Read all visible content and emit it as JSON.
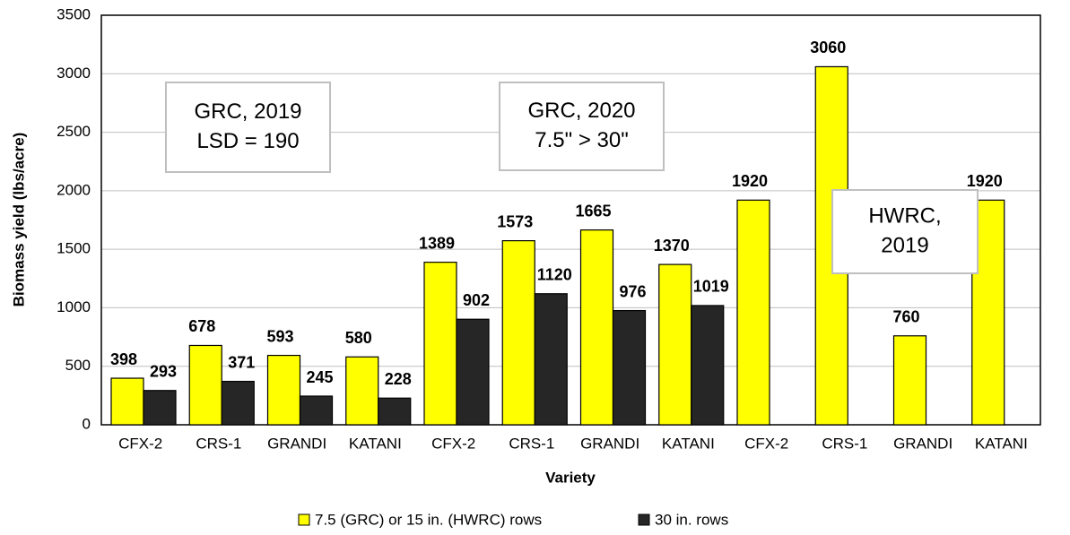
{
  "chart_data": {
    "type": "bar",
    "xlabel": "Variety",
    "ylabel": "Biomass yield (lbs/acre)",
    "categories": [
      "CFX-2",
      "CRS-1",
      "GRANDI",
      "KATANI",
      "CFX-2",
      "CRS-1",
      "GRANDI",
      "KATANI",
      "CFX-2",
      "CRS-1",
      "GRANDI",
      "KATANI"
    ],
    "series": [
      {
        "name": "7.5 (GRC) or 15 in. (HWRC) rows",
        "color": "#ffff00",
        "values": [
          398,
          678,
          593,
          580,
          1389,
          1573,
          1665,
          1370,
          1920,
          3060,
          760,
          1920
        ]
      },
      {
        "name": "30 in. rows",
        "color": "#262626",
        "values": [
          293,
          371,
          245,
          228,
          902,
          1120,
          976,
          1019,
          null,
          null,
          null,
          null
        ]
      }
    ],
    "ylim": [
      0,
      3500
    ],
    "yticks": [
      0,
      500,
      1000,
      1500,
      2000,
      2500,
      3000,
      3500
    ],
    "grid": true,
    "legend": "bottom",
    "annotations": [
      {
        "lines": [
          "GRC, 2019",
          "LSD = 190"
        ]
      },
      {
        "lines": [
          "GRC, 2020",
          "7.5\" > 30\""
        ]
      },
      {
        "lines": [
          "HWRC,",
          "2019"
        ]
      }
    ]
  }
}
